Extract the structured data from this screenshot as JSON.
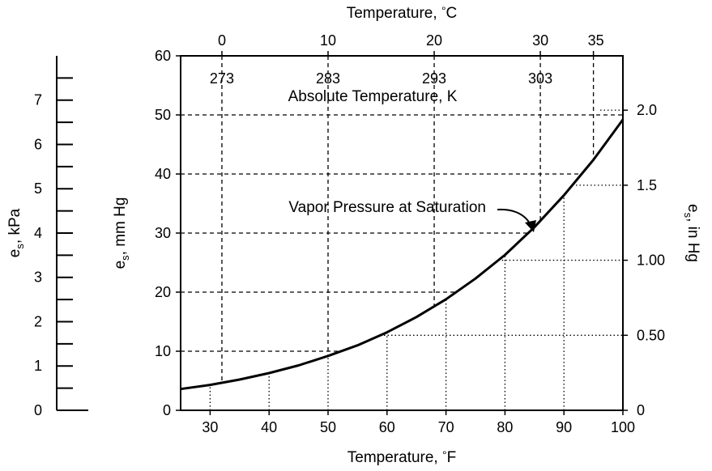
{
  "chart_data": {
    "type": "line",
    "title": "",
    "xlabel": "Temperature, °F",
    "xlabel_parts": [
      "Temperature, ",
      "°",
      "F"
    ],
    "ylabel_left": "e",
    "ylabel_left_sub": "s",
    "ylabel_left_unit": ", mm Hg",
    "xlim": [
      25,
      100
    ],
    "ylim": [
      0,
      60
    ],
    "x_ticks": [
      30,
      40,
      50,
      60,
      70,
      80,
      90,
      100
    ],
    "y_ticks": [
      0,
      10,
      20,
      30,
      40,
      50,
      60
    ],
    "grid": "dashed at Celsius and mm Hg ticks, dotted at Fahrenheit and in Hg ticks",
    "series": [
      {
        "name": "Vapor Pressure at Saturation",
        "x": [
          25,
          30,
          35,
          40,
          45,
          50,
          55,
          60,
          65,
          70,
          75,
          80,
          85,
          90,
          95,
          100
        ],
        "y": [
          3.6,
          4.3,
          5.2,
          6.3,
          7.6,
          9.2,
          11.0,
          13.2,
          15.8,
          18.8,
          22.3,
          26.3,
          31.0,
          36.4,
          42.4,
          49.2
        ]
      }
    ],
    "annotation": "Vapor Pressure at Saturation",
    "top_axis": {
      "title_parts": [
        "Temperature, ",
        "°",
        "C"
      ],
      "ticks": [
        "0",
        "10",
        "20",
        "30",
        "35"
      ],
      "tick_values_f": [
        32,
        50,
        68,
        86,
        95
      ]
    },
    "kelvin_axis": {
      "title": "Absolute Temperature, K",
      "ticks": [
        "273",
        "283",
        "293",
        "303"
      ],
      "tick_values_f": [
        32,
        50,
        68,
        86
      ]
    },
    "right_axis": {
      "title_main": "e",
      "title_sub": "s",
      "title_unit": ", in Hg",
      "ticks": [
        "0",
        "0.50",
        "1.00",
        "1.5",
        "2.0"
      ],
      "tick_values": [
        0,
        0.5,
        1.0,
        1.5,
        2.0
      ],
      "mmhg_per_unit": 25.4
    },
    "kpa_axis": {
      "title_main": "e",
      "title_sub": "s",
      "title_unit": ", kPa",
      "ticks": [
        "0",
        "1",
        "2",
        "3",
        "4",
        "5",
        "6",
        "7"
      ],
      "tick_values": [
        0,
        1,
        2,
        3,
        4,
        5,
        6,
        7
      ],
      "minor_step": 0.5,
      "mmhg_per_unit": 7.50062
    }
  }
}
